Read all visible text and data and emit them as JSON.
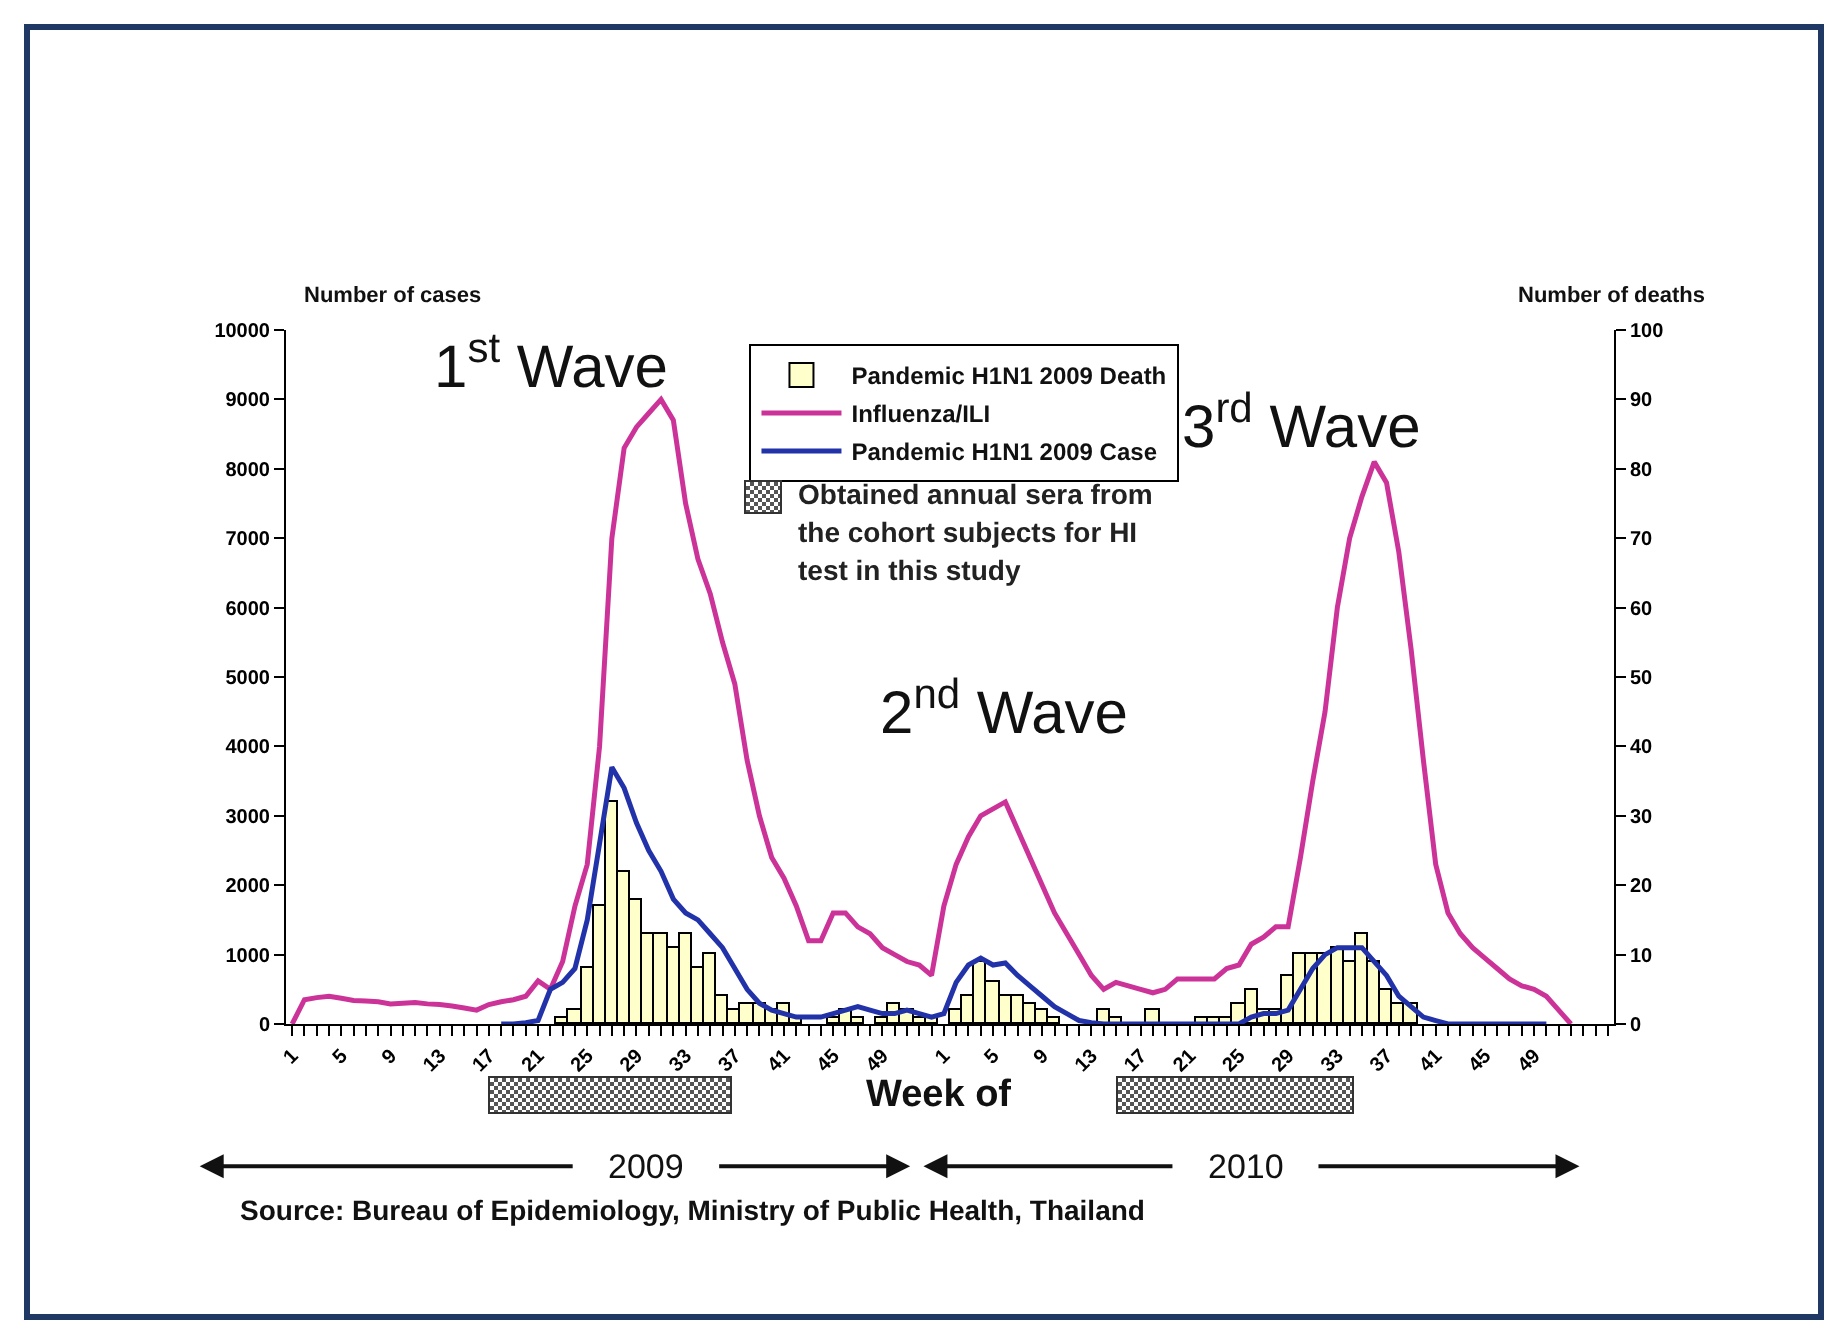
{
  "chart_data": {
    "type": "line",
    "xlabel": "Week of",
    "ylabel": "Number of cases",
    "y2label": "Number of deaths",
    "legend": "top",
    "annotations": [
      "1$^{st}$ Wave",
      "2$^{nd}$ Wave",
      "3$^{rd}$ Wave",
      "2009",
      "2010",
      "Source: Bureau of Epidemiology, Ministry of Public Health, Thailand",
      "Obtained annual sera from the cohort subjects for HI test in this study"
    ],
    "categories": [
      "1",
      null,
      null,
      null,
      "5",
      null,
      null,
      null,
      "9",
      null,
      null,
      null,
      "13",
      null,
      null,
      null,
      "17",
      null,
      null,
      null,
      "21",
      null,
      null,
      null,
      "25",
      null,
      null,
      null,
      "29",
      null,
      null,
      null,
      "33",
      null,
      null,
      null,
      "37",
      null,
      null,
      null,
      "41",
      null,
      null,
      null,
      "45",
      null,
      null,
      null,
      "49",
      null,
      null,
      null,
      null,
      "1",
      null,
      null,
      null,
      "5",
      null,
      null,
      null,
      "9",
      null,
      null,
      null,
      "13",
      null,
      null,
      null,
      "17",
      null,
      null,
      null,
      "21",
      null,
      null,
      null,
      "25",
      null,
      null,
      null,
      "29",
      null,
      null,
      null,
      "33",
      null,
      null,
      null,
      "37",
      null,
      null,
      null,
      "41",
      null,
      null,
      null,
      "45",
      null,
      null,
      null,
      "49",
      null,
      null,
      null,
      null,
      null,
      null
    ],
    "ylim": [
      0,
      10000
    ],
    "yticks": [
      0,
      1000,
      2000,
      3000,
      4000,
      5000,
      6000,
      7000,
      8000,
      9000,
      10000
    ],
    "y2lim": [
      0,
      100
    ],
    "y2ticks": [
      0,
      10,
      20,
      30,
      40,
      50,
      60,
      70,
      80,
      90,
      100
    ],
    "series": [
      {
        "name": "Pandemic H1N1 2009 Death",
        "type": "bar",
        "axis": "y2",
        "color": "#ffffcc",
        "values": [
          null,
          null,
          null,
          null,
          null,
          null,
          null,
          null,
          null,
          null,
          null,
          null,
          null,
          null,
          null,
          null,
          null,
          null,
          null,
          null,
          null,
          null,
          1,
          2,
          8,
          17,
          32,
          22,
          18,
          13,
          13,
          11,
          13,
          8,
          10,
          4,
          2,
          3,
          3,
          2,
          3,
          1,
          null,
          null,
          1,
          2,
          1,
          null,
          1,
          3,
          2,
          1,
          1,
          null,
          2,
          4,
          9,
          6,
          4,
          4,
          3,
          2,
          1,
          null,
          null,
          null,
          2,
          1,
          null,
          null,
          2,
          null,
          null,
          null,
          1,
          1,
          1,
          3,
          5,
          2,
          2,
          7,
          10,
          10,
          10,
          11,
          9,
          13,
          9,
          5,
          3,
          3,
          null,
          null,
          null,
          null,
          null,
          null,
          null,
          null,
          null,
          null,
          null,
          null,
          null,
          null,
          null,
          null
        ]
      },
      {
        "name": "Influenza/ILI",
        "color": "#cc3399",
        "values": [
          0,
          350,
          380,
          400,
          370,
          340,
          330,
          320,
          290,
          300,
          310,
          290,
          280,
          260,
          230,
          200,
          280,
          320,
          350,
          400,
          620,
          500,
          900,
          1700,
          2300,
          4000,
          7000,
          8300,
          8600,
          8800,
          9000,
          8700,
          7500,
          6700,
          6200,
          5500,
          4900,
          3800,
          3000,
          2400,
          2100,
          1700,
          1200,
          1200,
          1600,
          1600,
          1400,
          1300,
          1100,
          1000,
          900,
          850,
          700,
          1700,
          2300,
          2700,
          3000,
          3100,
          3200,
          2800,
          2400,
          2000,
          1600,
          1300,
          1000,
          700,
          500,
          600,
          550,
          500,
          450,
          500,
          650,
          650,
          650,
          650,
          800,
          850,
          1150,
          1250,
          1400,
          1400,
          2400,
          3500,
          4500,
          6000,
          7000,
          7600,
          8100,
          7800,
          6800,
          5400,
          3800,
          2300,
          1600,
          1300,
          1100,
          950,
          800,
          650,
          550,
          500,
          400,
          200,
          0,
          null,
          null,
          null
        ]
      },
      {
        "name": "Pandemic H1N1 2009 Case",
        "color": "#2233aa",
        "values": [
          null,
          null,
          null,
          null,
          null,
          null,
          null,
          null,
          null,
          null,
          null,
          null,
          null,
          null,
          null,
          null,
          null,
          0,
          0,
          20,
          50,
          500,
          600,
          800,
          1500,
          2600,
          3700,
          3400,
          2900,
          2500,
          2200,
          1800,
          1600,
          1500,
          1300,
          1100,
          800,
          500,
          300,
          200,
          150,
          100,
          100,
          100,
          150,
          200,
          250,
          200,
          150,
          150,
          200,
          150,
          100,
          150,
          600,
          850,
          950,
          850,
          880,
          700,
          550,
          400,
          250,
          150,
          50,
          20,
          0,
          0,
          0,
          0,
          0,
          0,
          0,
          0,
          0,
          0,
          0,
          0,
          100,
          150,
          150,
          200,
          500,
          800,
          1000,
          1100,
          1100,
          1100,
          900,
          700,
          400,
          250,
          100,
          50,
          0,
          0,
          0,
          0,
          0,
          0,
          0,
          0,
          0,
          null,
          null,
          null,
          null,
          null
        ]
      }
    ]
  }
}
